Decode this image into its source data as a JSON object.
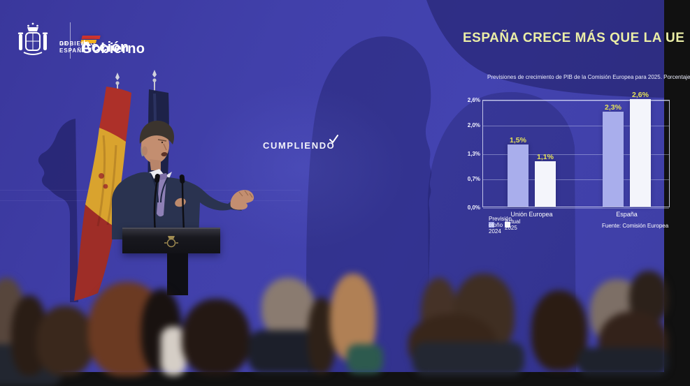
{
  "branding": {
    "government": {
      "line1": "GOBIERNO",
      "line2": "DE ESPAÑA"
    },
    "accion_de_gobierno": {
      "word1": "Acción",
      "word2": "de",
      "word3": "Gobierno"
    },
    "cumpliendo_label": "CUMPLIENDO"
  },
  "headline": "ESPAÑA CRECE MÁS QUE LA UE",
  "chart_data": {
    "type": "bar",
    "title": "Previsiones de crecimiento de PIB de la Comisión Europea para 2025. Porcentaje",
    "categories": [
      "Unión Europea",
      "España"
    ],
    "series": [
      {
        "name": "Previsión otoño 2024",
        "color": "#a9aeec",
        "values": [
          1.5,
          2.3
        ]
      },
      {
        "name": "Actual 2025",
        "color": "#f4f5fb",
        "values": [
          1.1,
          2.6
        ]
      }
    ],
    "value_labels": [
      [
        "1,5%",
        "2,3%"
      ],
      [
        "1,1%",
        "2,6%"
      ]
    ],
    "ylim": [
      0,
      2.6
    ],
    "yticks": [
      {
        "value": 0.0,
        "label": "0,0%"
      },
      {
        "value": 0.7,
        "label": "0,7%"
      },
      {
        "value": 1.3,
        "label": "1,3%"
      },
      {
        "value": 2.0,
        "label": "2,0%"
      },
      {
        "value": 2.6,
        "label": "2,6%"
      }
    ],
    "grid": true,
    "legend_position": "bottom-left",
    "source": "Fuente: Comisión Europea",
    "colors": {
      "value_label": "#e4e05a",
      "axis_text": "#f4f5ff",
      "frame": "#e4e7fc"
    }
  }
}
